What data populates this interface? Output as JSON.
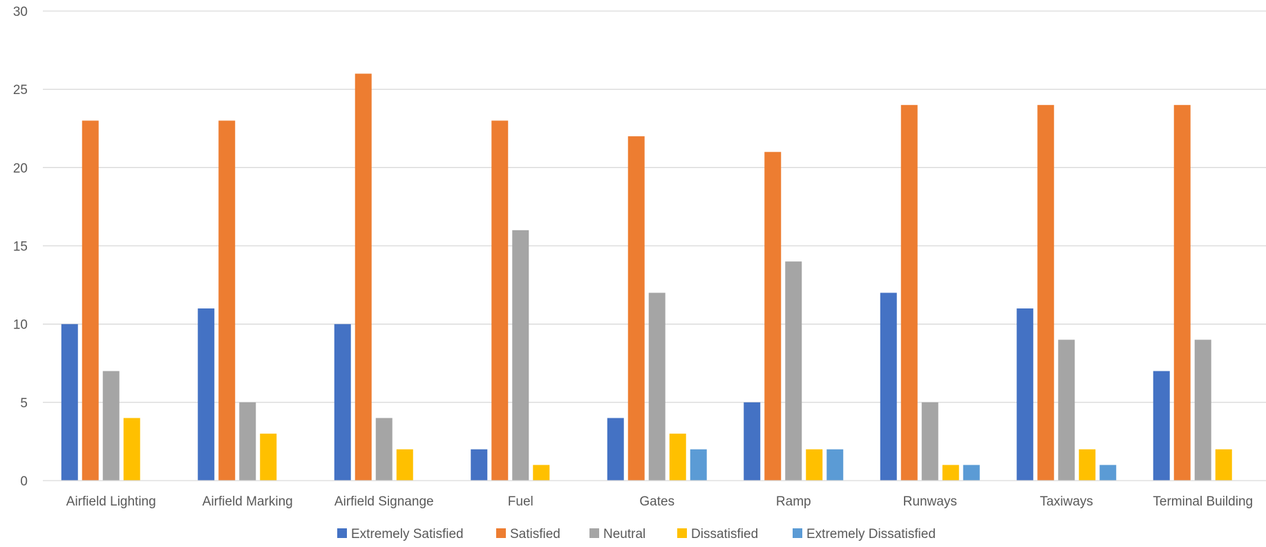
{
  "chart_data": {
    "type": "bar",
    "title": "",
    "xlabel": "",
    "ylabel": "",
    "categories": [
      "Airfield Lighting",
      "Airfield Marking",
      "Airfield Signange",
      "Fuel",
      "Gates",
      "Ramp",
      "Runways",
      "Taxiways",
      "Terminal Building"
    ],
    "series": [
      {
        "name": "Extremely Satisfied",
        "color": "#4472C4",
        "values": [
          10,
          11,
          10,
          2,
          4,
          5,
          12,
          11,
          7
        ]
      },
      {
        "name": "Satisfied",
        "color": "#ED7D31",
        "values": [
          23,
          23,
          26,
          23,
          22,
          21,
          24,
          24,
          24
        ]
      },
      {
        "name": "Neutral",
        "color": "#A5A5A5",
        "values": [
          7,
          5,
          4,
          16,
          12,
          14,
          5,
          9,
          9
        ]
      },
      {
        "name": "Dissatisfied",
        "color": "#FFC000",
        "values": [
          4,
          3,
          2,
          1,
          3,
          2,
          1,
          2,
          2
        ]
      },
      {
        "name": "Extremely Dissatisfied",
        "color": "#5B9BD5",
        "values": [
          0,
          0,
          0,
          0,
          2,
          2,
          1,
          1,
          0
        ]
      }
    ],
    "ylim": [
      0,
      30
    ],
    "yticks": [
      0,
      5,
      10,
      15,
      20,
      25,
      30
    ],
    "grid": true,
    "legend_position": "bottom"
  }
}
